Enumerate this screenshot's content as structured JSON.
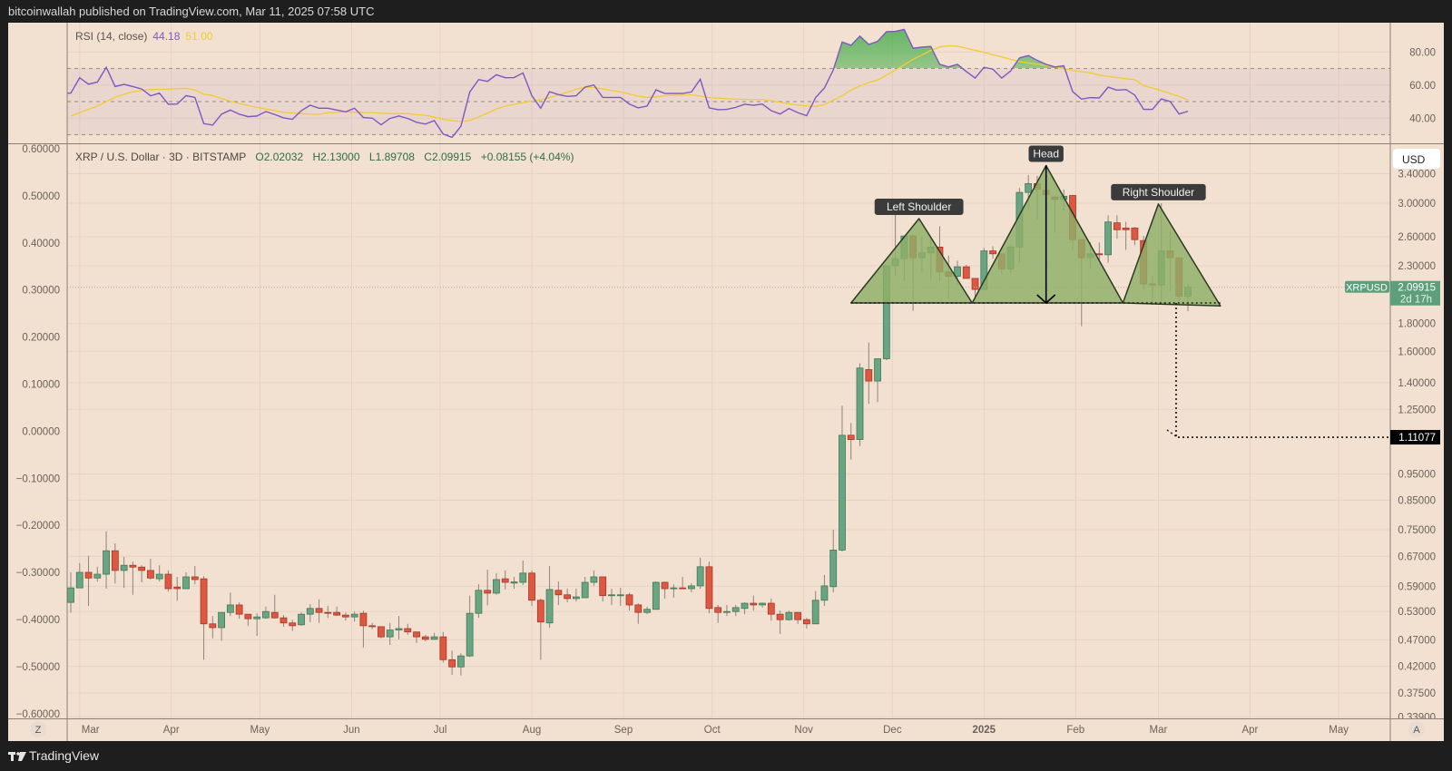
{
  "header": {
    "title": "bitcoinwallah published on TradingView.com, Mar 11, 2025 07:58 UTC"
  },
  "footer": {
    "brand": "TradingView"
  },
  "rsi_pane": {
    "label": "RSI (14, close)",
    "rsi_value": "44.18",
    "ma_value": "51.00",
    "axis_ticks": [
      "80.00",
      "60.00",
      "40.00"
    ],
    "bands": [
      70,
      50,
      30
    ]
  },
  "main_pane": {
    "symbol": "XRP / U.S. Dollar · 3D · BITSTAMP",
    "ohlc": [
      {
        "k": "O",
        "v": "2.02032"
      },
      {
        "k": "H",
        "v": "2.13000"
      },
      {
        "k": "L",
        "v": "1.89708"
      },
      {
        "k": "C",
        "v": "2.09915"
      }
    ],
    "change": "+0.08155 (+4.04%)",
    "currency": "USD",
    "right_axis_ticks": [
      "3.40000",
      "3.00000",
      "2.60000",
      "2.30000",
      "1.80000",
      "1.60000",
      "1.40000",
      "1.25000",
      "0.95000",
      "0.85000",
      "0.75000",
      "0.67000",
      "0.59000",
      "0.53000",
      "0.47000",
      "0.42000",
      "0.37500",
      "0.33900"
    ],
    "left_axis_ticks": [
      "0.60000",
      "0.50000",
      "0.40000",
      "0.30000",
      "0.20000",
      "0.10000",
      "0.00000",
      "−0.10000",
      "−0.20000",
      "−0.30000",
      "−0.40000",
      "−0.50000",
      "−0.60000"
    ],
    "last_price": {
      "symbol": "XRPUSD",
      "price": "2.09915",
      "countdown": "2d 17h"
    },
    "target_label": "1.11077",
    "time_axis": [
      {
        "label": "Mar",
        "date": "2024-03-01"
      },
      {
        "label": "Apr",
        "date": "2024-04-01"
      },
      {
        "label": "May",
        "date": "2024-05-01"
      },
      {
        "label": "Jun",
        "date": "2024-06-01"
      },
      {
        "label": "Jul",
        "date": "2024-07-01"
      },
      {
        "label": "Aug",
        "date": "2024-08-01"
      },
      {
        "label": "Sep",
        "date": "2024-09-01"
      },
      {
        "label": "Oct",
        "date": "2024-10-01"
      },
      {
        "label": "Nov",
        "date": "2024-11-01"
      },
      {
        "label": "Dec",
        "date": "2024-12-01"
      },
      {
        "label": "2025",
        "date": "2025-01-01"
      },
      {
        "label": "Feb",
        "date": "2025-02-01"
      },
      {
        "label": "Mar",
        "date": "2025-03-01"
      },
      {
        "label": "Apr",
        "date": "2025-04-01"
      },
      {
        "label": "May",
        "date": "2025-05-01"
      }
    ],
    "buttons": {
      "left": "Z",
      "right": "A"
    }
  },
  "colors": {
    "up": "#6aa583",
    "down": "#dd5841",
    "rsi": "#7e57c2",
    "rsi_ma": "#f2cc2f",
    "pattern_fill": "#8fae68",
    "background": "#f2e0d0",
    "last_price": "#5c9f7a"
  },
  "chart_data": {
    "type": "candlestick",
    "interval": "3D",
    "scale": "log",
    "ylim": [
      0.339,
      3.5
    ],
    "grid": true,
    "candles_columns": [
      "date",
      "open",
      "high",
      "low",
      "close"
    ],
    "candles": [
      [
        "2024-02-27",
        0.551,
        0.626,
        0.527,
        0.586
      ],
      [
        "2024-03-01",
        0.586,
        0.651,
        0.586,
        0.626
      ],
      [
        "2024-03-04",
        0.626,
        0.672,
        0.543,
        0.611
      ],
      [
        "2024-03-07",
        0.611,
        0.641,
        0.602,
        0.621
      ],
      [
        "2024-03-10",
        0.621,
        0.745,
        0.584,
        0.686
      ],
      [
        "2024-03-13",
        0.686,
        0.708,
        0.597,
        0.631
      ],
      [
        "2024-03-16",
        0.631,
        0.668,
        0.586,
        0.645
      ],
      [
        "2024-03-19",
        0.645,
        0.655,
        0.569,
        0.64
      ],
      [
        "2024-03-22",
        0.64,
        0.645,
        0.6,
        0.631
      ],
      [
        "2024-03-25",
        0.631,
        0.663,
        0.607,
        0.611
      ],
      [
        "2024-03-28",
        0.609,
        0.645,
        0.602,
        0.621
      ],
      [
        "2024-03-31",
        0.621,
        0.631,
        0.577,
        0.584
      ],
      [
        "2024-04-03",
        0.588,
        0.614,
        0.555,
        0.584
      ],
      [
        "2024-04-06",
        0.584,
        0.626,
        0.584,
        0.614
      ],
      [
        "2024-04-09",
        0.614,
        0.643,
        0.595,
        0.607
      ],
      [
        "2024-04-12",
        0.609,
        0.616,
        0.432,
        0.503
      ],
      [
        "2024-04-15",
        0.503,
        0.52,
        0.473,
        0.495
      ],
      [
        "2024-04-18",
        0.495,
        0.528,
        0.468,
        0.528
      ],
      [
        "2024-04-21",
        0.528,
        0.574,
        0.52,
        0.545
      ],
      [
        "2024-04-24",
        0.545,
        0.551,
        0.514,
        0.524
      ],
      [
        "2024-04-27",
        0.524,
        0.524,
        0.499,
        0.514
      ],
      [
        "2024-04-30",
        0.514,
        0.526,
        0.478,
        0.518
      ],
      [
        "2024-05-03",
        0.516,
        0.541,
        0.514,
        0.53
      ],
      [
        "2024-05-06",
        0.528,
        0.569,
        0.514,
        0.516
      ],
      [
        "2024-05-09",
        0.516,
        0.522,
        0.497,
        0.505
      ],
      [
        "2024-05-12",
        0.505,
        0.512,
        0.488,
        0.499
      ],
      [
        "2024-05-15",
        0.501,
        0.528,
        0.499,
        0.524
      ],
      [
        "2024-05-18",
        0.524,
        0.547,
        0.507,
        0.537
      ],
      [
        "2024-05-21",
        0.537,
        0.558,
        0.505,
        0.528
      ],
      [
        "2024-05-24",
        0.528,
        0.543,
        0.516,
        0.527
      ],
      [
        "2024-05-27",
        0.528,
        0.541,
        0.52,
        0.522
      ],
      [
        "2024-05-30",
        0.522,
        0.528,
        0.51,
        0.518
      ],
      [
        "2024-06-02",
        0.518,
        0.53,
        0.508,
        0.524
      ],
      [
        "2024-06-05",
        0.526,
        0.532,
        0.455,
        0.499
      ],
      [
        "2024-06-08",
        0.499,
        0.505,
        0.492,
        0.497
      ],
      [
        "2024-06-11",
        0.497,
        0.497,
        0.473,
        0.476
      ],
      [
        "2024-06-14",
        0.476,
        0.505,
        0.46,
        0.49
      ],
      [
        "2024-06-17",
        0.49,
        0.52,
        0.471,
        0.493
      ],
      [
        "2024-06-20",
        0.493,
        0.503,
        0.48,
        0.486
      ],
      [
        "2024-06-23",
        0.486,
        0.486,
        0.464,
        0.476
      ],
      [
        "2024-06-26",
        0.476,
        0.48,
        0.467,
        0.471
      ],
      [
        "2024-06-29",
        0.471,
        0.484,
        0.471,
        0.476
      ],
      [
        "2024-07-02",
        0.476,
        0.486,
        0.427,
        0.432
      ],
      [
        "2024-07-05",
        0.432,
        0.449,
        0.405,
        0.419
      ],
      [
        "2024-07-08",
        0.419,
        0.444,
        0.404,
        0.439
      ],
      [
        "2024-07-11",
        0.439,
        0.567,
        0.437,
        0.526
      ],
      [
        "2024-07-14",
        0.526,
        0.595,
        0.516,
        0.58
      ],
      [
        "2024-07-17",
        0.58,
        0.633,
        0.544,
        0.573
      ],
      [
        "2024-07-20",
        0.573,
        0.624,
        0.569,
        0.607
      ],
      [
        "2024-07-23",
        0.609,
        0.631,
        0.582,
        0.6
      ],
      [
        "2024-07-26",
        0.598,
        0.614,
        0.584,
        0.601
      ],
      [
        "2024-07-29",
        0.6,
        0.658,
        0.593,
        0.624
      ],
      [
        "2024-08-01",
        0.624,
        0.631,
        0.543,
        0.556
      ],
      [
        "2024-08-04",
        0.556,
        0.56,
        0.432,
        0.507
      ],
      [
        "2024-08-07",
        0.505,
        0.643,
        0.495,
        0.582
      ],
      [
        "2024-08-10",
        0.58,
        0.602,
        0.545,
        0.569
      ],
      [
        "2024-08-13",
        0.569,
        0.584,
        0.551,
        0.56
      ],
      [
        "2024-08-16",
        0.56,
        0.584,
        0.553,
        0.564
      ],
      [
        "2024-08-19",
        0.562,
        0.614,
        0.562,
        0.6
      ],
      [
        "2024-08-22",
        0.6,
        0.631,
        0.591,
        0.614
      ],
      [
        "2024-08-25",
        0.614,
        0.614,
        0.553,
        0.567
      ],
      [
        "2024-08-28",
        0.567,
        0.584,
        0.545,
        0.569
      ],
      [
        "2024-08-31",
        0.567,
        0.586,
        0.543,
        0.569
      ],
      [
        "2024-09-03",
        0.569,
        0.574,
        0.532,
        0.545
      ],
      [
        "2024-09-06",
        0.545,
        0.549,
        0.503,
        0.528
      ],
      [
        "2024-09-09",
        0.528,
        0.541,
        0.524,
        0.535
      ],
      [
        "2024-09-12",
        0.535,
        0.602,
        0.535,
        0.6
      ],
      [
        "2024-09-15",
        0.6,
        0.602,
        0.56,
        0.584
      ],
      [
        "2024-09-18",
        0.584,
        0.595,
        0.562,
        0.586
      ],
      [
        "2024-09-21",
        0.586,
        0.614,
        0.584,
        0.584
      ],
      [
        "2024-09-24",
        0.584,
        0.598,
        0.575,
        0.591
      ],
      [
        "2024-09-27",
        0.591,
        0.666,
        0.584,
        0.641
      ],
      [
        "2024-09-30",
        0.641,
        0.655,
        0.526,
        0.537
      ],
      [
        "2024-10-03",
        0.539,
        0.545,
        0.505,
        0.528
      ],
      [
        "2024-10-06",
        0.528,
        0.545,
        0.52,
        0.53
      ],
      [
        "2024-10-09",
        0.53,
        0.545,
        0.52,
        0.539
      ],
      [
        "2024-10-12",
        0.537,
        0.551,
        0.524,
        0.549
      ],
      [
        "2024-10-15",
        0.549,
        0.567,
        0.532,
        0.545
      ],
      [
        "2024-10-18",
        0.545,
        0.551,
        0.539,
        0.549
      ],
      [
        "2024-10-21",
        0.549,
        0.56,
        0.51,
        0.524
      ],
      [
        "2024-10-24",
        0.524,
        0.532,
        0.482,
        0.512
      ],
      [
        "2024-10-27",
        0.512,
        0.532,
        0.51,
        0.528
      ],
      [
        "2024-10-30",
        0.528,
        0.528,
        0.503,
        0.512
      ],
      [
        "2024-11-02",
        0.512,
        0.516,
        0.493,
        0.503
      ],
      [
        "2024-11-05",
        0.503,
        0.578,
        0.503,
        0.556
      ],
      [
        "2024-11-08",
        0.556,
        0.619,
        0.543,
        0.591
      ],
      [
        "2024-11-11",
        0.589,
        0.75,
        0.575,
        0.688
      ],
      [
        "2024-11-14",
        0.688,
        1.27,
        0.684,
        1.12
      ],
      [
        "2024-11-17",
        1.12,
        1.18,
        1.01,
        1.1
      ],
      [
        "2024-11-20",
        1.1,
        1.52,
        1.07,
        1.49
      ],
      [
        "2024-11-23",
        1.48,
        1.66,
        1.28,
        1.41
      ],
      [
        "2024-11-26",
        1.41,
        1.55,
        1.29,
        1.55
      ],
      [
        "2024-11-29",
        1.55,
        2.3,
        1.54,
        2.3
      ],
      [
        "2024-12-02",
        2.3,
        2.86,
        2.2,
        2.37
      ],
      [
        "2024-12-05",
        2.37,
        2.61,
        2.16,
        2.61
      ],
      [
        "2024-12-08",
        2.61,
        2.63,
        1.9,
        2.38
      ],
      [
        "2024-12-11",
        2.38,
        2.6,
        2.24,
        2.43
      ],
      [
        "2024-12-14",
        2.43,
        2.6,
        2.17,
        2.49
      ],
      [
        "2024-12-17",
        2.49,
        2.72,
        2.15,
        2.24
      ],
      [
        "2024-12-20",
        2.24,
        2.4,
        2.0,
        2.2
      ],
      [
        "2024-12-23",
        2.2,
        2.35,
        2.12,
        2.29
      ],
      [
        "2024-12-26",
        2.29,
        2.31,
        2.18,
        2.18
      ],
      [
        "2024-12-29",
        2.18,
        2.18,
        1.99,
        2.08
      ],
      [
        "2025-01-01",
        2.08,
        2.48,
        2.07,
        2.45
      ],
      [
        "2025-01-04",
        2.45,
        2.5,
        2.37,
        2.42
      ],
      [
        "2025-01-07",
        2.42,
        2.42,
        2.22,
        2.27
      ],
      [
        "2025-01-10",
        2.27,
        2.51,
        2.23,
        2.49
      ],
      [
        "2025-01-13",
        2.49,
        3.2,
        2.33,
        3.14
      ],
      [
        "2025-01-16",
        3.14,
        3.38,
        2.93,
        3.26
      ],
      [
        "2025-01-19",
        3.26,
        3.37,
        2.8,
        3.18
      ],
      [
        "2025-01-22",
        3.17,
        3.49,
        2.65,
        3.11
      ],
      [
        "2025-01-25",
        3.08,
        3.1,
        2.65,
        3.05
      ],
      [
        "2025-01-28",
        3.05,
        3.18,
        2.91,
        3.09
      ],
      [
        "2025-01-31",
        3.1,
        3.1,
        2.46,
        2.57
      ],
      [
        "2025-02-03",
        2.57,
        2.57,
        1.78,
        2.38
      ],
      [
        "2025-02-06",
        2.38,
        2.54,
        2.27,
        2.42
      ],
      [
        "2025-02-09",
        2.42,
        2.54,
        2.35,
        2.41
      ],
      [
        "2025-02-12",
        2.41,
        2.85,
        2.33,
        2.77
      ],
      [
        "2025-02-15",
        2.76,
        2.85,
        2.58,
        2.68
      ],
      [
        "2025-02-18",
        2.7,
        2.77,
        2.46,
        2.68
      ],
      [
        "2025-02-21",
        2.7,
        2.71,
        2.51,
        2.57
      ],
      [
        "2025-02-24",
        2.56,
        2.61,
        2.08,
        2.13
      ],
      [
        "2025-02-27",
        2.13,
        2.2,
        1.95,
        2.12
      ],
      [
        "2025-03-02",
        2.12,
        3.0,
        1.95,
        2.45
      ],
      [
        "2025-03-05",
        2.45,
        2.67,
        2.07,
        2.38
      ],
      [
        "2025-03-08",
        2.38,
        2.38,
        1.98,
        2.02
      ],
      [
        "2025-03-11",
        2.02032,
        2.13,
        1.89708,
        2.09915
      ]
    ],
    "rsi": [
      55.1,
      64.4,
      60.5,
      61.8,
      70.7,
      59.1,
      60.4,
      59.1,
      57.6,
      53.5,
      55.1,
      48.4,
      48.5,
      53.6,
      52.5,
      36.7,
      35.8,
      42.4,
      44.9,
      42.4,
      40.9,
      41.3,
      44.0,
      42.2,
      40.2,
      39.3,
      44.5,
      47.8,
      46.0,
      46.0,
      44.9,
      43.8,
      46.0,
      40.4,
      40.0,
      36.0,
      39.8,
      41.3,
      39.8,
      37.5,
      36.4,
      38.5,
      30.4,
      28.4,
      35.1,
      55.8,
      63.3,
      62.2,
      66.2,
      64.4,
      64.5,
      67.3,
      53.6,
      46.0,
      56.0,
      54.2,
      53.1,
      53.5,
      58.7,
      60.0,
      52.5,
      52.5,
      52.5,
      48.5,
      46.2,
      47.3,
      57.1,
      54.9,
      54.9,
      54.9,
      55.8,
      63.5,
      46.2,
      45.1,
      45.3,
      46.5,
      48.4,
      47.8,
      48.5,
      44.5,
      42.5,
      45.8,
      43.3,
      41.5,
      52.4,
      58.2,
      69.1,
      86.0,
      84.0,
      89.5,
      84.5,
      86.4,
      92.2,
      92.4,
      93.6,
      82.2,
      82.9,
      83.3,
      72.5,
      70.9,
      72.5,
      68.2,
      64.2,
      70.7,
      69.6,
      64.2,
      68.5,
      76.4,
      77.8,
      74.9,
      72.5,
      70.9,
      71.6,
      56.0,
      51.5,
      52.4,
      52.2,
      58.7,
      56.9,
      57.3,
      54.0,
      45.3,
      45.3,
      51.6,
      50.0,
      42.5,
      44.18
    ],
    "rsi_ma": [
      41.3,
      43.3,
      45.3,
      47.3,
      50.0,
      52.7,
      54.4,
      56.0,
      56.7,
      57.3,
      57.4,
      57.5,
      57.8,
      58.0,
      57.0,
      54.5,
      53.6,
      51.9,
      50.2,
      48.9,
      47.6,
      46.5,
      45.5,
      44.5,
      43.5,
      43.1,
      42.7,
      42.4,
      42.3,
      43.2,
      43.5,
      43.8,
      43.6,
      43.4,
      43.3,
      43.0,
      42.7,
      42.7,
      42.7,
      42.2,
      41.7,
      40.7,
      39.3,
      38.5,
      38.0,
      38.5,
      40.8,
      43.0,
      45.6,
      47.2,
      48.3,
      49.4,
      50.3,
      51.1,
      52.5,
      54.0,
      55.6,
      57.5,
      58.7,
      58.5,
      57.7,
      56.7,
      55.8,
      54.6,
      53.3,
      52.5,
      52.9,
      53.5,
      53.7,
      53.9,
      54.1,
      53.3,
      52.4,
      52.1,
      51.8,
      51.5,
      51.3,
      51.3,
      51.3,
      50.5,
      49.6,
      48.7,
      47.9,
      47.4,
      47.1,
      48.2,
      50.8,
      53.6,
      57.0,
      59.5,
      61.5,
      63.0,
      66.0,
      69.1,
      72.2,
      75.5,
      78.2,
      80.9,
      83.0,
      83.7,
      83.5,
      82.2,
      81.0,
      79.7,
      78.3,
      77.0,
      75.5,
      74.2,
      73.4,
      72.6,
      71.8,
      70.8,
      69.9,
      68.9,
      68.0,
      67.3,
      66.0,
      65.2,
      64.5,
      63.8,
      63.3,
      59.6,
      58.2,
      56.6,
      54.9,
      53.2,
      51.0
    ],
    "annotations": {
      "neckline_price": 1.964,
      "left_shoulder": {
        "label": "Left Shoulder",
        "points": [
          [
            "2024-11-17",
            1.964
          ],
          [
            "2024-12-10",
            2.81
          ],
          [
            "2024-12-28",
            1.964
          ]
        ]
      },
      "head": {
        "label": "Head",
        "points": [
          [
            "2024-12-28",
            1.964
          ],
          [
            "2025-01-22",
            3.52
          ],
          [
            "2025-02-17",
            1.964
          ]
        ]
      },
      "right_shoulder": {
        "label": "Right Shoulder",
        "points": [
          [
            "2025-02-17",
            1.964
          ],
          [
            "2025-03-01",
            2.99
          ],
          [
            "2025-03-22",
            1.94
          ]
        ]
      },
      "measured_move": {
        "date": "2025-01-22",
        "from": 3.52,
        "to": 1.964
      },
      "target": {
        "date": "2025-03-07",
        "from": 1.964,
        "to": 1.11077
      }
    }
  }
}
